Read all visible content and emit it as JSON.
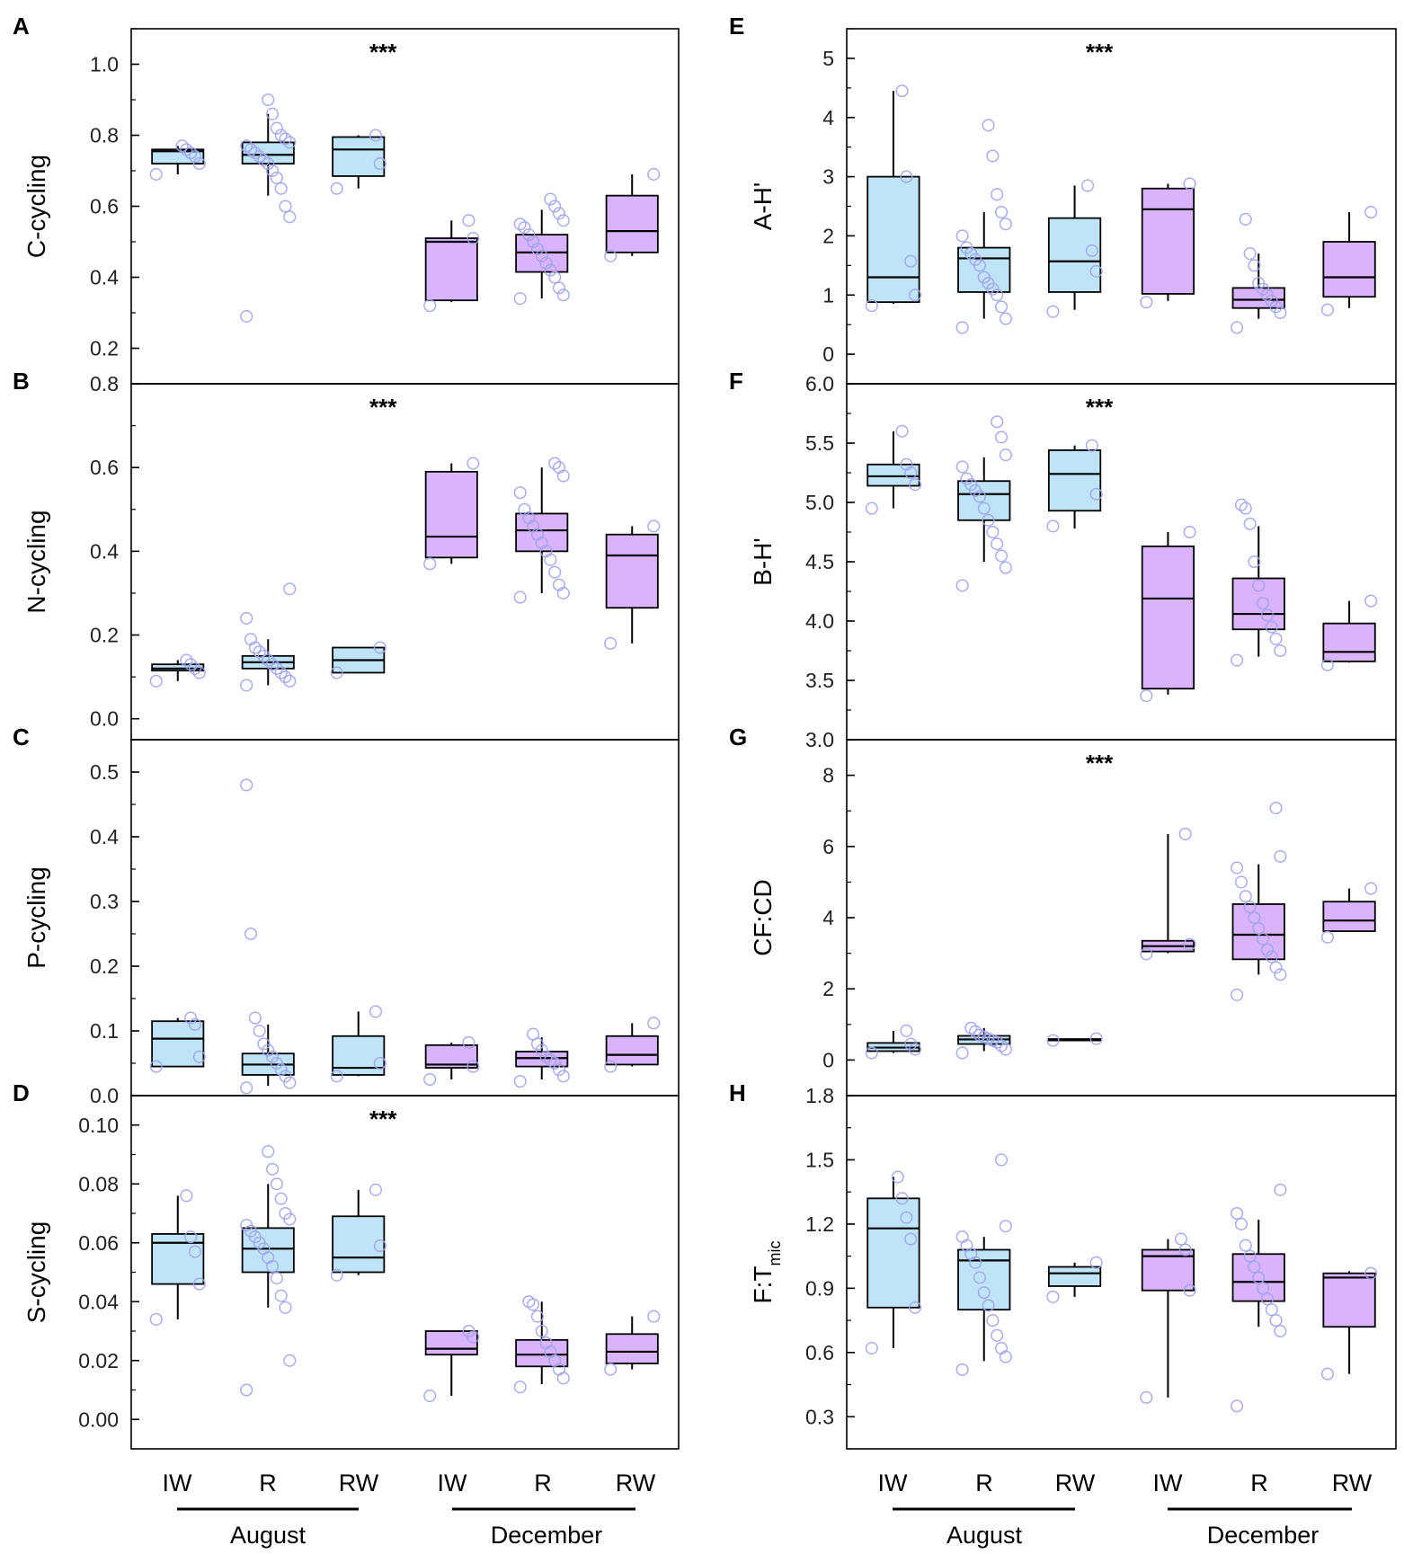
{
  "colors": {
    "august": "#bfe4f7",
    "december": "#d9b3fb",
    "point": "#9ea3ee",
    "line": "#000000"
  },
  "x_categories": [
    "IW",
    "R",
    "RW",
    "IW",
    "R",
    "RW"
  ],
  "x_groups": [
    "August",
    "December"
  ],
  "chart_data": [
    {
      "type": "box",
      "panel": "A",
      "ylabel": "C-cycling",
      "ylim": [
        0.1,
        1.1
      ],
      "yticks": [
        "0.2",
        "0.4",
        "0.6",
        "0.8",
        "1.0"
      ],
      "significance": "***",
      "boxes": [
        {
          "group": "August",
          "cat": "IW",
          "min": 0.69,
          "q1": 0.72,
          "median": 0.755,
          "q3": 0.76,
          "max": 0.77,
          "points": [
            0.69,
            0.72,
            0.74,
            0.75,
            0.76,
            0.77
          ]
        },
        {
          "group": "August",
          "cat": "R",
          "min": 0.63,
          "q1": 0.72,
          "median": 0.745,
          "q3": 0.78,
          "max": 0.86,
          "points": [
            0.29,
            0.57,
            0.6,
            0.65,
            0.68,
            0.7,
            0.72,
            0.73,
            0.74,
            0.75,
            0.76,
            0.77,
            0.78,
            0.79,
            0.8,
            0.82,
            0.86,
            0.9
          ]
        },
        {
          "group": "August",
          "cat": "RW",
          "min": 0.65,
          "q1": 0.685,
          "median": 0.76,
          "q3": 0.795,
          "max": 0.8,
          "points": [
            0.65,
            0.72,
            0.8
          ]
        },
        {
          "group": "December",
          "cat": "IW",
          "min": 0.33,
          "q1": 0.335,
          "median": 0.5,
          "q3": 0.51,
          "max": 0.56,
          "points": [
            0.32,
            0.51,
            0.56
          ]
        },
        {
          "group": "December",
          "cat": "R",
          "min": 0.34,
          "q1": 0.415,
          "median": 0.47,
          "q3": 0.52,
          "max": 0.59,
          "points": [
            0.34,
            0.35,
            0.37,
            0.4,
            0.42,
            0.44,
            0.46,
            0.48,
            0.5,
            0.52,
            0.54,
            0.55,
            0.56,
            0.58,
            0.6,
            0.62
          ]
        },
        {
          "group": "December",
          "cat": "RW",
          "min": 0.46,
          "q1": 0.47,
          "median": 0.53,
          "q3": 0.63,
          "max": 0.69,
          "points": [
            0.46,
            0.69
          ]
        }
      ]
    },
    {
      "type": "box",
      "panel": "B",
      "ylabel": "N-cycling",
      "ylim": [
        -0.05,
        0.8
      ],
      "yticks": [
        "0.0",
        "0.2",
        "0.4",
        "0.6",
        "0.8"
      ],
      "significance": "***",
      "boxes": [
        {
          "group": "August",
          "cat": "IW",
          "min": 0.09,
          "q1": 0.115,
          "median": 0.12,
          "q3": 0.13,
          "max": 0.14,
          "points": [
            0.09,
            0.11,
            0.12,
            0.13,
            0.14
          ]
        },
        {
          "group": "August",
          "cat": "R",
          "min": 0.08,
          "q1": 0.12,
          "median": 0.135,
          "q3": 0.15,
          "max": 0.19,
          "points": [
            0.08,
            0.09,
            0.1,
            0.11,
            0.12,
            0.13,
            0.14,
            0.15,
            0.16,
            0.17,
            0.19,
            0.24,
            0.31
          ]
        },
        {
          "group": "August",
          "cat": "RW",
          "min": 0.11,
          "q1": 0.11,
          "median": 0.14,
          "q3": 0.17,
          "max": 0.17,
          "points": [
            0.11,
            0.17
          ]
        },
        {
          "group": "December",
          "cat": "IW",
          "min": 0.37,
          "q1": 0.385,
          "median": 0.435,
          "q3": 0.59,
          "max": 0.61,
          "points": [
            0.37,
            0.61
          ]
        },
        {
          "group": "December",
          "cat": "R",
          "min": 0.3,
          "q1": 0.4,
          "median": 0.45,
          "q3": 0.49,
          "max": 0.6,
          "points": [
            0.29,
            0.3,
            0.32,
            0.35,
            0.38,
            0.4,
            0.42,
            0.44,
            0.46,
            0.48,
            0.5,
            0.54,
            0.58,
            0.6,
            0.61
          ]
        },
        {
          "group": "December",
          "cat": "RW",
          "min": 0.18,
          "q1": 0.265,
          "median": 0.39,
          "q3": 0.44,
          "max": 0.46,
          "points": [
            0.18,
            0.46
          ]
        }
      ]
    },
    {
      "type": "box",
      "panel": "C",
      "ylabel": "P-cycling",
      "ylim": [
        0.0,
        0.55
      ],
      "yticks": [
        "0.0",
        "0.1",
        "0.2",
        "0.3",
        "0.4",
        "0.5"
      ],
      "significance": "",
      "boxes": [
        {
          "group": "August",
          "cat": "IW",
          "min": 0.045,
          "q1": 0.045,
          "median": 0.088,
          "q3": 0.115,
          "max": 0.12,
          "points": [
            0.045,
            0.06,
            0.11,
            0.12
          ]
        },
        {
          "group": "August",
          "cat": "R",
          "min": 0.015,
          "q1": 0.032,
          "median": 0.048,
          "q3": 0.065,
          "max": 0.11,
          "points": [
            0.012,
            0.02,
            0.03,
            0.04,
            0.05,
            0.06,
            0.07,
            0.08,
            0.1,
            0.12,
            0.25,
            0.48
          ]
        },
        {
          "group": "August",
          "cat": "RW",
          "min": 0.03,
          "q1": 0.032,
          "median": 0.043,
          "q3": 0.092,
          "max": 0.13,
          "points": [
            0.03,
            0.05,
            0.13
          ]
        },
        {
          "group": "December",
          "cat": "IW",
          "min": 0.025,
          "q1": 0.043,
          "median": 0.048,
          "q3": 0.078,
          "max": 0.082,
          "points": [
            0.025,
            0.045,
            0.082
          ]
        },
        {
          "group": "December",
          "cat": "R",
          "min": 0.025,
          "q1": 0.045,
          "median": 0.058,
          "q3": 0.068,
          "max": 0.09,
          "points": [
            0.022,
            0.03,
            0.04,
            0.05,
            0.055,
            0.06,
            0.07,
            0.08,
            0.095
          ]
        },
        {
          "group": "December",
          "cat": "RW",
          "min": 0.045,
          "q1": 0.048,
          "median": 0.063,
          "q3": 0.092,
          "max": 0.112,
          "points": [
            0.045,
            0.112
          ]
        }
      ]
    },
    {
      "type": "box",
      "panel": "D",
      "ylabel": "S-cycling",
      "ylim": [
        -0.01,
        0.11
      ],
      "yticks": [
        "0.00",
        "0.02",
        "0.04",
        "0.06",
        "0.08",
        "0.10"
      ],
      "significance": "***",
      "boxes": [
        {
          "group": "August",
          "cat": "IW",
          "min": 0.034,
          "q1": 0.046,
          "median": 0.06,
          "q3": 0.063,
          "max": 0.076,
          "points": [
            0.034,
            0.046,
            0.057,
            0.062,
            0.076
          ]
        },
        {
          "group": "August",
          "cat": "R",
          "min": 0.038,
          "q1": 0.05,
          "median": 0.058,
          "q3": 0.065,
          "max": 0.08,
          "points": [
            0.01,
            0.02,
            0.038,
            0.042,
            0.048,
            0.052,
            0.055,
            0.058,
            0.06,
            0.062,
            0.064,
            0.066,
            0.068,
            0.07,
            0.075,
            0.08,
            0.085,
            0.091
          ]
        },
        {
          "group": "August",
          "cat": "RW",
          "min": 0.049,
          "q1": 0.05,
          "median": 0.055,
          "q3": 0.069,
          "max": 0.078,
          "points": [
            0.049,
            0.059,
            0.078
          ]
        },
        {
          "group": "December",
          "cat": "IW",
          "min": 0.008,
          "q1": 0.022,
          "median": 0.024,
          "q3": 0.03,
          "max": 0.03,
          "points": [
            0.008,
            0.028,
            0.03
          ]
        },
        {
          "group": "December",
          "cat": "R",
          "min": 0.012,
          "q1": 0.018,
          "median": 0.022,
          "q3": 0.027,
          "max": 0.04,
          "points": [
            0.011,
            0.014,
            0.017,
            0.02,
            0.023,
            0.026,
            0.03,
            0.035,
            0.039,
            0.04
          ]
        },
        {
          "group": "December",
          "cat": "RW",
          "min": 0.017,
          "q1": 0.019,
          "median": 0.023,
          "q3": 0.029,
          "max": 0.035,
          "points": [
            0.017,
            0.035
          ]
        }
      ]
    },
    {
      "type": "box",
      "panel": "E",
      "ylabel": "A-H'",
      "ylim": [
        -0.5,
        5.5
      ],
      "yticks": [
        "0",
        "1",
        "2",
        "3",
        "4",
        "5"
      ],
      "significance": "***",
      "boxes": [
        {
          "group": "August",
          "cat": "IW",
          "min": 0.85,
          "q1": 0.88,
          "median": 1.3,
          "q3": 3.0,
          "max": 4.45,
          "points": [
            0.82,
            1.0,
            1.57,
            3.0,
            4.45
          ]
        },
        {
          "group": "August",
          "cat": "R",
          "min": 0.6,
          "q1": 1.05,
          "median": 1.62,
          "q3": 1.8,
          "max": 2.4,
          "points": [
            0.45,
            0.6,
            0.8,
            1.0,
            1.1,
            1.2,
            1.3,
            1.5,
            1.6,
            1.7,
            1.8,
            2.0,
            2.2,
            2.4,
            2.7,
            3.35,
            3.87
          ]
        },
        {
          "group": "August",
          "cat": "RW",
          "min": 0.75,
          "q1": 1.05,
          "median": 1.57,
          "q3": 2.3,
          "max": 2.85,
          "points": [
            0.72,
            1.4,
            1.75,
            2.85
          ]
        },
        {
          "group": "December",
          "cat": "IW",
          "min": 0.9,
          "q1": 1.02,
          "median": 2.45,
          "q3": 2.8,
          "max": 2.88,
          "points": [
            0.88,
            2.88
          ]
        },
        {
          "group": "December",
          "cat": "R",
          "min": 0.6,
          "q1": 0.78,
          "median": 0.92,
          "q3": 1.12,
          "max": 1.7,
          "points": [
            0.45,
            0.7,
            0.8,
            0.9,
            1.0,
            1.1,
            1.2,
            1.5,
            1.7,
            2.28
          ]
        },
        {
          "group": "December",
          "cat": "RW",
          "min": 0.78,
          "q1": 0.97,
          "median": 1.3,
          "q3": 1.9,
          "max": 2.4,
          "points": [
            0.75,
            2.4
          ]
        }
      ]
    },
    {
      "type": "box",
      "panel": "F",
      "ylabel": "B-H'",
      "ylim": [
        3.0,
        6.0
      ],
      "yticks": [
        "3.0",
        "3.5",
        "4.0",
        "4.5",
        "5.0",
        "5.5",
        "6.0"
      ],
      "significance": "***",
      "boxes": [
        {
          "group": "August",
          "cat": "IW",
          "min": 4.95,
          "q1": 5.14,
          "median": 5.22,
          "q3": 5.32,
          "max": 5.6,
          "points": [
            4.95,
            5.15,
            5.25,
            5.32,
            5.6
          ]
        },
        {
          "group": "August",
          "cat": "R",
          "min": 4.5,
          "q1": 4.85,
          "median": 5.07,
          "q3": 5.18,
          "max": 5.38,
          "points": [
            4.3,
            4.45,
            4.55,
            4.65,
            4.75,
            4.85,
            4.95,
            5.05,
            5.1,
            5.15,
            5.2,
            5.3,
            5.4,
            5.55,
            5.68
          ]
        },
        {
          "group": "August",
          "cat": "RW",
          "min": 4.78,
          "q1": 4.93,
          "median": 5.24,
          "q3": 5.44,
          "max": 5.48,
          "points": [
            4.8,
            5.07,
            5.48
          ]
        },
        {
          "group": "December",
          "cat": "IW",
          "min": 3.38,
          "q1": 3.43,
          "median": 4.19,
          "q3": 4.63,
          "max": 4.75,
          "points": [
            3.37,
            4.75
          ]
        },
        {
          "group": "December",
          "cat": "R",
          "min": 3.7,
          "q1": 3.93,
          "median": 4.06,
          "q3": 4.36,
          "max": 4.8,
          "points": [
            3.67,
            3.75,
            3.85,
            3.95,
            4.05,
            4.15,
            4.3,
            4.5,
            4.82,
            4.95,
            4.98
          ]
        },
        {
          "group": "December",
          "cat": "RW",
          "min": 3.65,
          "q1": 3.66,
          "median": 3.74,
          "q3": 3.98,
          "max": 4.17,
          "points": [
            3.63,
            4.17
          ]
        }
      ]
    },
    {
      "type": "box",
      "panel": "G",
      "ylabel": "CF:CD",
      "ylim": [
        -1.0,
        9.0
      ],
      "yticks": [
        "0",
        "2",
        "4",
        "6",
        "8"
      ],
      "significance": "***",
      "boxes": [
        {
          "group": "August",
          "cat": "IW",
          "min": 0.2,
          "q1": 0.25,
          "median": 0.35,
          "q3": 0.48,
          "max": 0.82,
          "points": [
            0.2,
            0.3,
            0.45,
            0.82
          ]
        },
        {
          "group": "August",
          "cat": "R",
          "min": 0.25,
          "q1": 0.45,
          "median": 0.58,
          "q3": 0.68,
          "max": 0.9,
          "points": [
            0.2,
            0.3,
            0.4,
            0.5,
            0.55,
            0.6,
            0.65,
            0.7,
            0.8,
            0.9
          ]
        },
        {
          "group": "August",
          "cat": "RW",
          "min": 0.55,
          "q1": 0.55,
          "median": 0.57,
          "q3": 0.59,
          "max": 0.6,
          "points": [
            0.55,
            0.6
          ]
        },
        {
          "group": "December",
          "cat": "IW",
          "min": 3.0,
          "q1": 3.05,
          "median": 3.2,
          "q3": 3.35,
          "max": 6.35,
          "points": [
            2.98,
            3.25,
            6.35
          ]
        },
        {
          "group": "December",
          "cat": "R",
          "min": 2.4,
          "q1": 2.83,
          "median": 3.52,
          "q3": 4.38,
          "max": 5.5,
          "points": [
            1.83,
            2.4,
            2.6,
            2.9,
            3.1,
            3.4,
            3.7,
            4.0,
            4.3,
            4.6,
            5.0,
            5.4,
            5.72,
            7.08
          ]
        },
        {
          "group": "December",
          "cat": "RW",
          "min": 3.6,
          "q1": 3.62,
          "median": 3.92,
          "q3": 4.45,
          "max": 4.82,
          "points": [
            3.45,
            4.82
          ]
        }
      ]
    },
    {
      "type": "box",
      "panel": "H",
      "ylabel": "F:T",
      "ylabel_sub": "mic",
      "ylim": [
        0.15,
        1.8
      ],
      "yticks": [
        "0.3",
        "0.6",
        "0.9",
        "1.2",
        "1.5",
        "1.8"
      ],
      "significance": "",
      "boxes": [
        {
          "group": "August",
          "cat": "IW",
          "min": 0.62,
          "q1": 0.81,
          "median": 1.18,
          "q3": 1.32,
          "max": 1.42,
          "points": [
            0.62,
            0.81,
            1.13,
            1.23,
            1.32,
            1.42
          ]
        },
        {
          "group": "August",
          "cat": "R",
          "min": 0.56,
          "q1": 0.8,
          "median": 1.03,
          "q3": 1.08,
          "max": 1.14,
          "points": [
            0.52,
            0.58,
            0.62,
            0.68,
            0.75,
            0.82,
            0.88,
            0.95,
            1.02,
            1.06,
            1.1,
            1.14,
            1.19,
            1.5
          ]
        },
        {
          "group": "August",
          "cat": "RW",
          "min": 0.86,
          "q1": 0.91,
          "median": 0.97,
          "q3": 1.0,
          "max": 1.02,
          "points": [
            0.86,
            1.02
          ]
        },
        {
          "group": "December",
          "cat": "IW",
          "min": 0.39,
          "q1": 0.89,
          "median": 1.05,
          "q3": 1.08,
          "max": 1.13,
          "points": [
            0.39,
            0.89,
            1.08,
            1.13
          ]
        },
        {
          "group": "December",
          "cat": "R",
          "min": 0.72,
          "q1": 0.84,
          "median": 0.93,
          "q3": 1.06,
          "max": 1.22,
          "points": [
            0.35,
            0.7,
            0.75,
            0.8,
            0.85,
            0.9,
            0.95,
            1.0,
            1.05,
            1.1,
            1.2,
            1.25,
            1.36
          ]
        },
        {
          "group": "December",
          "cat": "RW",
          "min": 0.5,
          "q1": 0.72,
          "median": 0.95,
          "q3": 0.97,
          "max": 0.98,
          "points": [
            0.5,
            0.97
          ]
        }
      ]
    }
  ]
}
